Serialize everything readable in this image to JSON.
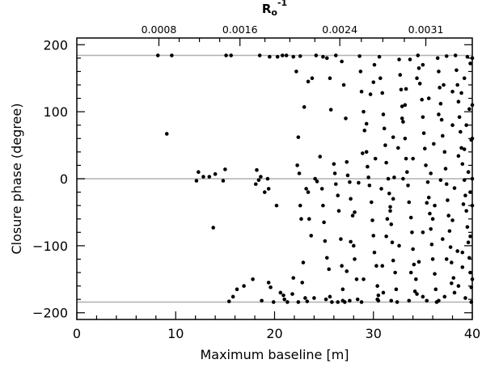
{
  "chart_data": {
    "type": "scatter",
    "xlabel": "Maximum baseline [m]",
    "ylabel": "Closure phase (degree)",
    "x2label_main": "R",
    "x2label_sub": "o",
    "x2label_sup": "-1",
    "xlim": [
      0,
      40
    ],
    "ylim": [
      -210,
      210
    ],
    "xticks": [
      0,
      10,
      20,
      30,
      40
    ],
    "xtick_labels": [
      "0",
      "10",
      "20",
      "30",
      "40"
    ],
    "yticks": [
      -200,
      -100,
      0,
      100,
      200
    ],
    "ytick_labels": [
      "−200",
      "−100",
      "0",
      "100",
      "200"
    ],
    "top_ticks_x": [
      8.3,
      16.5,
      26.6,
      35.3
    ],
    "top_tick_labels": [
      "0.0008",
      "0.0016",
      "0.0024",
      "0.0031"
    ],
    "reference_lines_y": [
      -184,
      0,
      184
    ],
    "colors": {
      "points": "#000000",
      "reference_lines": "#b0b0b0",
      "axes": "#000000"
    },
    "series": [
      {
        "points": [
          [
            8.2,
            184
          ],
          [
            9.6,
            184
          ],
          [
            9.1,
            67
          ],
          [
            12.1,
            -3
          ],
          [
            12.3,
            10
          ],
          [
            12.8,
            3
          ],
          [
            13.4,
            3
          ],
          [
            13.8,
            -73
          ],
          [
            14.0,
            7
          ],
          [
            14.8,
            -3
          ],
          [
            15.0,
            14
          ],
          [
            15.1,
            184
          ],
          [
            15.6,
            184
          ],
          [
            15.4,
            -183
          ],
          [
            15.8,
            -176
          ],
          [
            16.2,
            -165
          ],
          [
            16.9,
            -160
          ],
          [
            17.8,
            -150
          ],
          [
            18.1,
            -8
          ],
          [
            18.4,
            -2
          ],
          [
            18.6,
            3
          ],
          [
            18.2,
            13
          ],
          [
            18.7,
            -182
          ],
          [
            19.0,
            -20
          ],
          [
            19.3,
            0
          ],
          [
            19.4,
            -15
          ],
          [
            19.6,
            -162
          ],
          [
            19.4,
            -155
          ],
          [
            19.9,
            -184
          ],
          [
            20.2,
            -40
          ],
          [
            20.6,
            -170
          ],
          [
            20.9,
            -174
          ],
          [
            21.2,
            184
          ],
          [
            21.3,
            -184
          ],
          [
            21.8,
            -172
          ],
          [
            21.9,
            -148
          ],
          [
            22.3,
            20
          ],
          [
            22.5,
            8
          ],
          [
            22.6,
            -40
          ],
          [
            22.7,
            -60
          ],
          [
            22.9,
            -125
          ],
          [
            22.8,
            -155
          ],
          [
            23.1,
            -178
          ],
          [
            23.3,
            -183
          ],
          [
            18.5,
            184
          ],
          [
            19.5,
            182
          ],
          [
            20.3,
            182
          ],
          [
            20.8,
            184
          ],
          [
            21.9,
            182
          ],
          [
            22.2,
            160
          ],
          [
            22.4,
            62
          ],
          [
            22.6,
            183
          ],
          [
            23.0,
            107
          ],
          [
            23.2,
            -15
          ],
          [
            23.4,
            -20
          ],
          [
            23.5,
            -60
          ],
          [
            23.7,
            -85
          ],
          [
            23.4,
            145
          ],
          [
            23.8,
            150
          ],
          [
            24.1,
            0
          ],
          [
            24.3,
            -4
          ],
          [
            24.6,
            33
          ],
          [
            24.8,
            -15
          ],
          [
            24.9,
            -40
          ],
          [
            25.0,
            -65
          ],
          [
            25.1,
            -93
          ],
          [
            25.3,
            -118
          ],
          [
            25.5,
            -135
          ],
          [
            25.6,
            -176
          ],
          [
            25.8,
            -184
          ],
          [
            24.2,
            184
          ],
          [
            24.9,
            182
          ],
          [
            25.3,
            180
          ],
          [
            25.6,
            150
          ],
          [
            25.7,
            103
          ],
          [
            26.0,
            22
          ],
          [
            26.1,
            8
          ],
          [
            26.2,
            -8
          ],
          [
            26.4,
            -25
          ],
          [
            26.5,
            -48
          ],
          [
            26.7,
            -90
          ],
          [
            26.8,
            -130
          ],
          [
            26.9,
            -165
          ],
          [
            27.1,
            -184
          ],
          [
            26.2,
            184
          ],
          [
            26.8,
            175
          ],
          [
            27.0,
            140
          ],
          [
            27.2,
            90
          ],
          [
            27.3,
            25
          ],
          [
            27.4,
            5
          ],
          [
            27.6,
            -5
          ],
          [
            27.7,
            -30
          ],
          [
            27.9,
            -55
          ],
          [
            28.0,
            -100
          ],
          [
            28.1,
            -120
          ],
          [
            28.3,
            -150
          ],
          [
            28.4,
            -180
          ],
          [
            28.6,
            183
          ],
          [
            28.7,
            160
          ],
          [
            28.8,
            130
          ],
          [
            29.0,
            100
          ],
          [
            29.1,
            72
          ],
          [
            29.3,
            40
          ],
          [
            29.4,
            18
          ],
          [
            29.5,
            2
          ],
          [
            29.6,
            -10
          ],
          [
            29.8,
            -35
          ],
          [
            29.9,
            -62
          ],
          [
            30.0,
            -85
          ],
          [
            30.1,
            -110
          ],
          [
            30.3,
            -130
          ],
          [
            30.4,
            -160
          ],
          [
            30.5,
            -182
          ],
          [
            30.6,
            182
          ],
          [
            30.7,
            150
          ],
          [
            30.9,
            128
          ],
          [
            31.0,
            96
          ],
          [
            31.1,
            75
          ],
          [
            31.2,
            50
          ],
          [
            31.3,
            24
          ],
          [
            31.5,
            0
          ],
          [
            31.6,
            -22
          ],
          [
            31.7,
            -48
          ],
          [
            31.8,
            -68
          ],
          [
            31.9,
            -95
          ],
          [
            32.0,
            -122
          ],
          [
            32.2,
            -140
          ],
          [
            32.3,
            -165
          ],
          [
            32.4,
            -184
          ],
          [
            32.6,
            178
          ],
          [
            32.7,
            155
          ],
          [
            32.8,
            133
          ],
          [
            32.9,
            108
          ],
          [
            33.0,
            85
          ],
          [
            33.2,
            60
          ],
          [
            33.3,
            30
          ],
          [
            33.4,
            10
          ],
          [
            33.5,
            -10
          ],
          [
            33.6,
            -35
          ],
          [
            33.8,
            -58
          ],
          [
            33.9,
            -80
          ],
          [
            34.0,
            -105
          ],
          [
            34.1,
            -128
          ],
          [
            34.3,
            -150
          ],
          [
            34.4,
            -172
          ],
          [
            34.5,
            184
          ],
          [
            34.6,
            165
          ],
          [
            34.7,
            142
          ],
          [
            34.9,
            118
          ],
          [
            35.0,
            92
          ],
          [
            35.1,
            68
          ],
          [
            35.2,
            45
          ],
          [
            35.3,
            20
          ],
          [
            35.5,
            -5
          ],
          [
            35.6,
            -28
          ],
          [
            35.7,
            -52
          ],
          [
            35.8,
            -75
          ],
          [
            35.9,
            -98
          ],
          [
            36.0,
            -120
          ],
          [
            36.2,
            -142
          ],
          [
            36.3,
            -165
          ],
          [
            36.4,
            -184
          ],
          [
            36.5,
            180
          ],
          [
            36.6,
            160
          ],
          [
            36.7,
            136
          ],
          [
            36.8,
            112
          ],
          [
            36.9,
            88
          ],
          [
            37.0,
            64
          ],
          [
            37.2,
            40
          ],
          [
            37.3,
            15
          ],
          [
            37.4,
            -8
          ],
          [
            37.5,
            -32
          ],
          [
            37.6,
            -55
          ],
          [
            37.7,
            -78
          ],
          [
            37.8,
            -102
          ],
          [
            37.9,
            -125
          ],
          [
            38.1,
            -148
          ],
          [
            38.2,
            -170
          ],
          [
            38.3,
            184
          ],
          [
            38.4,
            162
          ],
          [
            38.5,
            140
          ],
          [
            38.6,
            115
          ],
          [
            38.7,
            92
          ],
          [
            38.8,
            70
          ],
          [
            38.9,
            46
          ],
          [
            39.0,
            22
          ],
          [
            39.2,
            -2
          ],
          [
            39.3,
            -25
          ],
          [
            39.4,
            -48
          ],
          [
            39.5,
            -72
          ],
          [
            39.6,
            -95
          ],
          [
            39.7,
            -118
          ],
          [
            39.8,
            -140
          ],
          [
            39.9,
            -162
          ],
          [
            39.9,
            -184
          ],
          [
            39.5,
            182
          ],
          [
            39.8,
            172
          ],
          [
            39.2,
            150
          ],
          [
            38.9,
            128
          ],
          [
            39.7,
            104
          ],
          [
            39.4,
            80
          ],
          [
            39.9,
            58
          ],
          [
            38.6,
            34
          ],
          [
            39.6,
            10
          ],
          [
            38.2,
            -14
          ],
          [
            39.1,
            -38
          ],
          [
            38.0,
            -62
          ],
          [
            39.8,
            -86
          ],
          [
            38.5,
            -108
          ],
          [
            39.0,
            -132
          ],
          [
            37.9,
            -156
          ],
          [
            39.3,
            -178
          ],
          [
            37.4,
            183
          ],
          [
            37.1,
            140
          ],
          [
            36.6,
            96
          ],
          [
            36.1,
            52
          ],
          [
            35.8,
            8
          ],
          [
            35.4,
            -36
          ],
          [
            35.0,
            -80
          ],
          [
            34.6,
            -124
          ],
          [
            34.2,
            -168
          ],
          [
            33.7,
            178
          ],
          [
            33.3,
            134
          ],
          [
            32.9,
            90
          ],
          [
            32.5,
            46
          ],
          [
            32.1,
            2
          ],
          [
            31.7,
            -42
          ],
          [
            31.3,
            -86
          ],
          [
            30.9,
            -130
          ],
          [
            30.5,
            -174
          ],
          [
            30.1,
            170
          ],
          [
            29.7,
            126
          ],
          [
            29.3,
            82
          ],
          [
            28.9,
            38
          ],
          [
            28.5,
            -6
          ],
          [
            28.1,
            -50
          ],
          [
            27.7,
            -94
          ],
          [
            27.3,
            -138
          ],
          [
            26.9,
            -182
          ],
          [
            30.2,
            30
          ],
          [
            30.8,
            -15
          ],
          [
            31.4,
            -60
          ],
          [
            32.0,
            62
          ],
          [
            32.6,
            -100
          ],
          [
            33.2,
            110
          ],
          [
            33.8,
            -140
          ],
          [
            34.4,
            150
          ],
          [
            35.0,
            -176
          ],
          [
            35.6,
            120
          ],
          [
            36.2,
            -40
          ],
          [
            36.8,
            -2
          ],
          [
            37.4,
            -120
          ],
          [
            38.0,
            80
          ],
          [
            38.6,
            -160
          ],
          [
            39.2,
            44
          ],
          [
            39.8,
            -20
          ],
          [
            29.0,
            -150
          ],
          [
            30.0,
            144
          ],
          [
            31.0,
            -170
          ],
          [
            32.0,
            -30
          ],
          [
            33.0,
            0
          ],
          [
            34.0,
            30
          ],
          [
            35.0,
            170
          ],
          [
            36.0,
            -60
          ],
          [
            37.0,
            -90
          ],
          [
            38.0,
            130
          ],
          [
            39.0,
            -110
          ],
          [
            40.0,
            0
          ],
          [
            40.0,
            -40
          ],
          [
            40.0,
            60
          ],
          [
            40.0,
            -150
          ],
          [
            40.0,
            110
          ],
          [
            40.0,
            180
          ],
          [
            36.6,
            -182
          ],
          [
            37.2,
            -176
          ],
          [
            35.4,
            -182
          ],
          [
            33.6,
            -182
          ],
          [
            31.8,
            -182
          ],
          [
            30.4,
            -180
          ],
          [
            28.8,
            -184
          ],
          [
            27.6,
            -182
          ],
          [
            26.4,
            -184
          ],
          [
            25.2,
            -180
          ],
          [
            24.0,
            -178
          ],
          [
            22.4,
            -184
          ],
          [
            21.0,
            -180
          ]
        ]
      }
    ]
  }
}
